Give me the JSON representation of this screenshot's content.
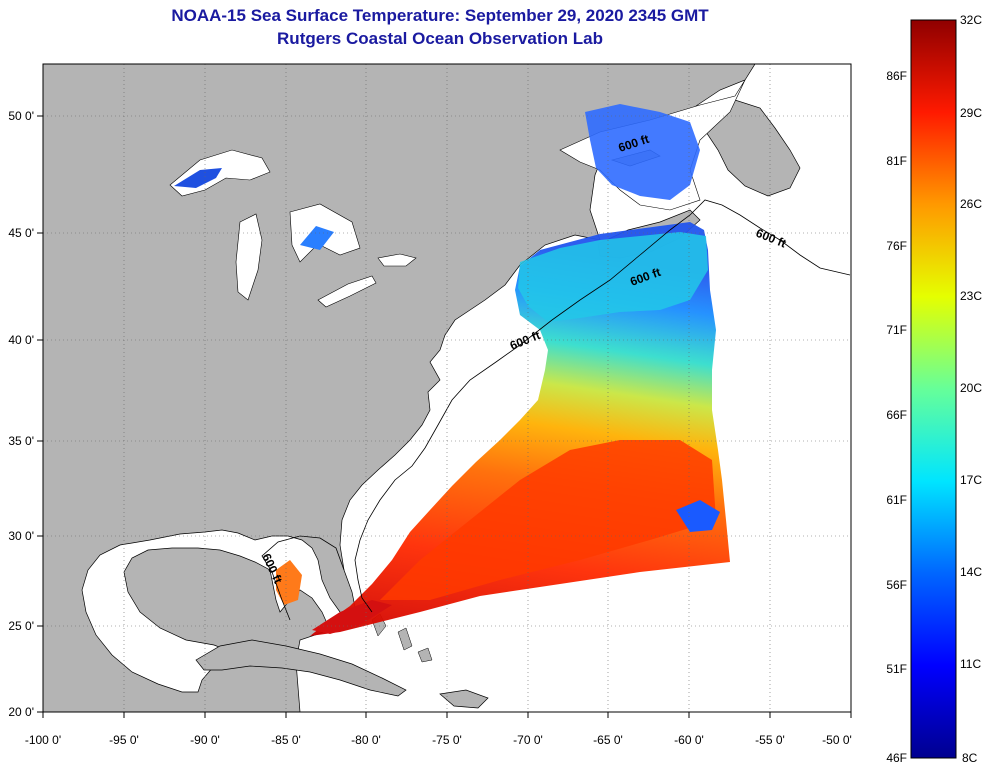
{
  "header": {
    "title": "NOAA-15 Sea Surface Temperature:  September 29, 2020 2345 GMT",
    "subtitle": "Rutgers Coastal Ocean Observation Lab"
  },
  "map": {
    "lon_labels": [
      "-100 0'",
      "-95 0'",
      "-90 0'",
      "-85 0'",
      "-80 0'",
      "-75 0'",
      "-70 0'",
      "-65 0'",
      "-60 0'",
      "-55 0'",
      "-50 0'"
    ],
    "lat_labels": [
      "50 0'",
      "45 0'",
      "40 0'",
      "35 0'",
      "30 0'",
      "25 0'",
      "20 0'"
    ],
    "contour_label": "600 ft",
    "colors": {
      "land": "#b4b4b4",
      "ocean_nodata": "#ffffff",
      "title": "#1a1aa0"
    }
  },
  "colorbar": {
    "celsius_labels": [
      "32C",
      "29C",
      "26C",
      "23C",
      "20C",
      "17C",
      "14C",
      "11C",
      "8C"
    ],
    "fahrenheit_labels": [
      "86F",
      "81F",
      "76F",
      "71F",
      "66F",
      "61F",
      "56F",
      "51F",
      "46F"
    ],
    "colors": [
      "#00008f",
      "#0000ff",
      "#0080ff",
      "#00ffff",
      "#80ff80",
      "#ffff00",
      "#ff8000",
      "#ff0000",
      "#800000"
    ]
  }
}
